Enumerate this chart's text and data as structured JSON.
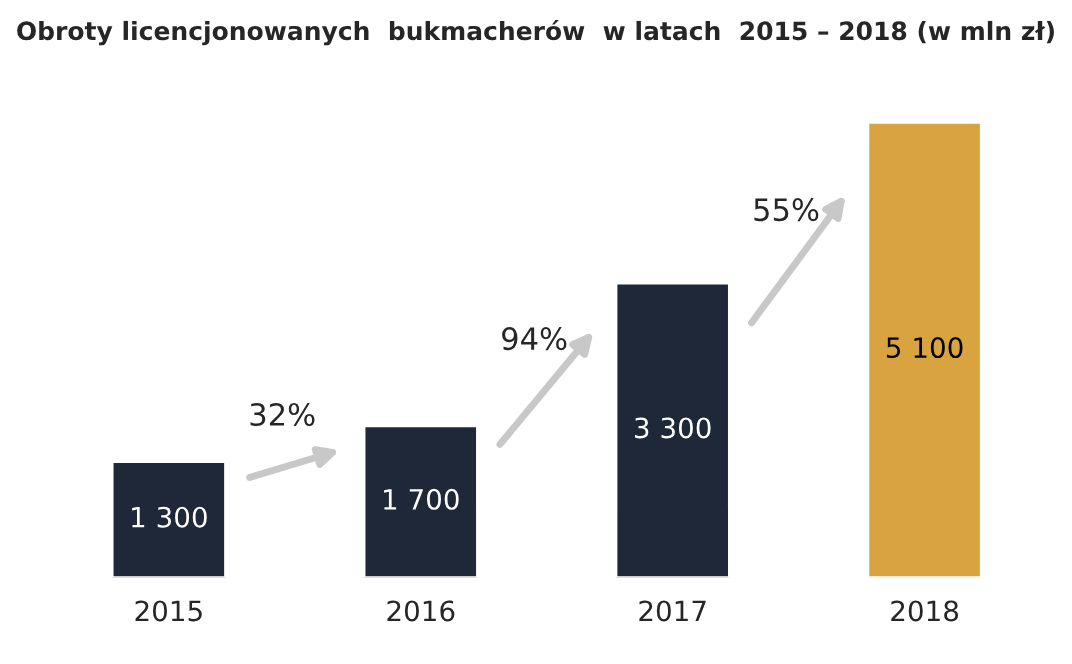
{
  "chart_data": {
    "type": "bar",
    "title": "Obroty licencjonowanych  bukmacherów  w latach  2015 – 2018 (w mln zł)",
    "categories": [
      "2015",
      "2016",
      "2017",
      "2018"
    ],
    "values": [
      1300,
      1700,
      3300,
      5100
    ],
    "colors": [
      "#1e2838",
      "#1e2838",
      "#1e2838",
      "#d9a440"
    ],
    "value_labels": [
      "1 300",
      "1 700",
      "3 300",
      "5 100"
    ],
    "annotations": [
      "32%",
      "94%",
      "55%"
    ],
    "grid": false
  }
}
